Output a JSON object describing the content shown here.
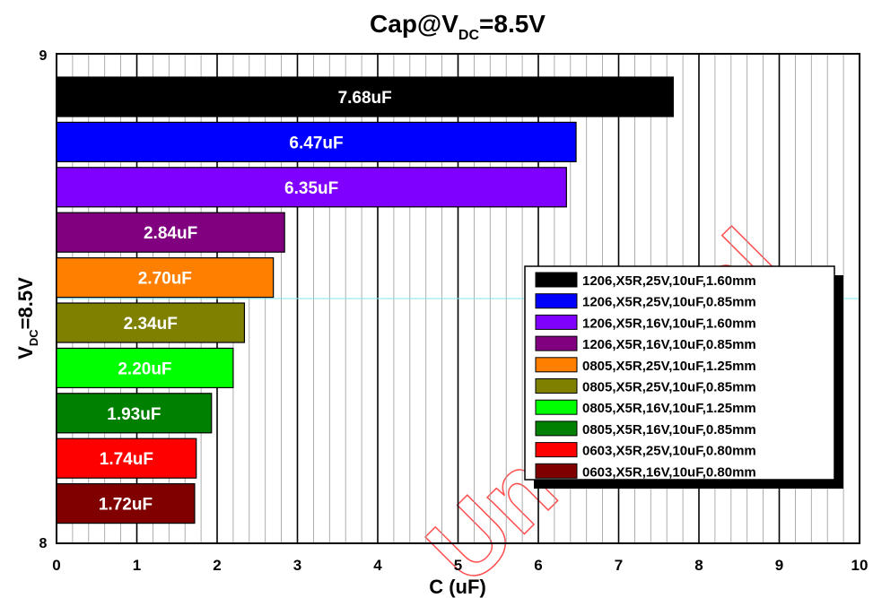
{
  "chart_data": {
    "type": "bar",
    "orientation": "horizontal",
    "title": "Cap@V",
    "title_subscript": "DC",
    "title_suffix": "=8.5V",
    "xlabel": "C (uF)",
    "ylabel": "V",
    "ylabel_subscript": "DC",
    "ylabel_suffix": "=8.5V",
    "xlim": [
      0,
      10
    ],
    "x_ticks": [
      "0",
      "1",
      "2",
      "3",
      "4",
      "5",
      "6",
      "7",
      "8",
      "9",
      "10"
    ],
    "y_tick_top": "9",
    "y_tick_bottom": "8",
    "grid": true,
    "legend_position": "right",
    "watermark": "Unofficial",
    "categories": [
      "1206,X5R,25V,10uF,1.60mm",
      "1206,X5R,25V,10uF,0.85mm",
      "1206,X5R,16V,10uF,1.60mm",
      "1206,X5R,16V,10uF,0.85mm",
      "0805,X5R,25V,10uF,1.25mm",
      "0805,X5R,25V,10uF,0.85mm",
      "0805,X5R,16V,10uF,1.25mm",
      "0805,X5R,16V,10uF,0.85mm",
      "0603,X5R,25V,10uF,0.80mm",
      "0603,X5R,16V,10uF,0.80mm"
    ],
    "values": [
      7.68,
      6.47,
      6.35,
      2.84,
      2.7,
      2.34,
      2.2,
      1.93,
      1.74,
      1.72
    ],
    "labels": [
      "7.68uF",
      "6.47uF",
      "6.35uF",
      "2.84uF",
      "2.70uF",
      "2.34uF",
      "2.20uF",
      "1.93uF",
      "1.74uF",
      "1.72uF"
    ],
    "colors": [
      "#000000",
      "#0000ff",
      "#8000ff",
      "#800080",
      "#ff8000",
      "#808000",
      "#00ff00",
      "#008000",
      "#ff0000",
      "#800000"
    ]
  }
}
